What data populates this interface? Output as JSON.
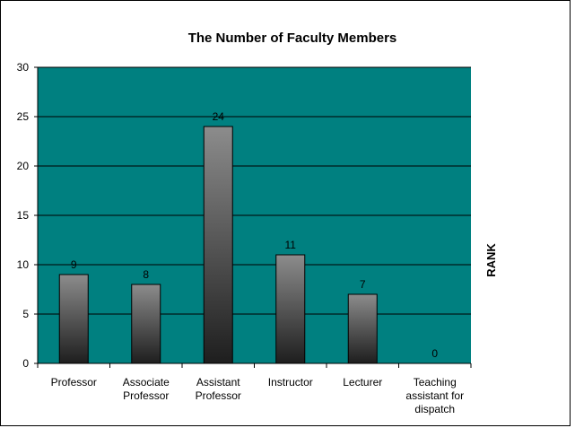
{
  "chart_data": {
    "type": "bar",
    "title": "The Number of Faculty Members",
    "categories": [
      [
        "Professor"
      ],
      [
        "Associate",
        "Professor"
      ],
      [
        "Assistant",
        "Professor"
      ],
      [
        "Instructor"
      ],
      [
        "Lecturer"
      ],
      [
        "Teaching",
        "assistant for",
        "dispatch"
      ]
    ],
    "values": [
      9,
      8,
      24,
      11,
      7,
      0
    ],
    "data_labels": [
      "9",
      "8",
      "24",
      "11",
      "7",
      "0"
    ],
    "xlabel": "",
    "ylabel": "",
    "side_label": "RANK",
    "ylim": [
      0,
      30
    ],
    "yticks": [
      0,
      5,
      10,
      15,
      20,
      25,
      30
    ],
    "grid": true,
    "legend": "none",
    "colors": {
      "plot_background": "#008080",
      "gridline": "#000000",
      "bar_top": "#8c8c8c",
      "bar_bottom": "#1e1e1e",
      "bar_outline": "#000000"
    }
  }
}
